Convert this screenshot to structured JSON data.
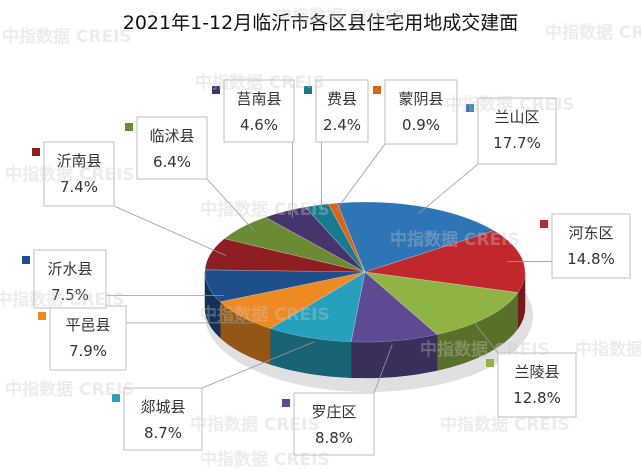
{
  "watermark": "中指数据 CREIS",
  "chart_data": {
    "type": "pie",
    "title": "2021年1-12月临沂市各区县住宅用地成交建面",
    "slices": [
      {
        "name": "兰山区",
        "value": 17.7,
        "label": "17.7%",
        "color": "#2E75B6"
      },
      {
        "name": "河东区",
        "value": 14.8,
        "label": "14.8%",
        "color": "#C0282E"
      },
      {
        "name": "兰陵县",
        "value": 12.8,
        "label": "12.8%",
        "color": "#8FB443"
      },
      {
        "name": "罗庄区",
        "value": 8.8,
        "label": "8.8%",
        "color": "#5E4A92"
      },
      {
        "name": "郯城县",
        "value": 8.7,
        "label": "8.7%",
        "color": "#26A0BC"
      },
      {
        "name": "平邑县",
        "value": 7.9,
        "label": "7.9%",
        "color": "#EE8A22"
      },
      {
        "name": "沂水县",
        "value": 7.5,
        "label": "7.5%",
        "color": "#1E4F8C"
      },
      {
        "name": "沂南县",
        "value": 7.4,
        "label": "7.4%",
        "color": "#8E1E22"
      },
      {
        "name": "临沭县",
        "value": 6.4,
        "label": "6.4%",
        "color": "#6A8A33"
      },
      {
        "name": "莒南县",
        "value": 4.6,
        "label": "4.6%",
        "color": "#46346E"
      },
      {
        "name": "费县",
        "value": 2.4,
        "label": "2.4%",
        "color": "#187A8E"
      },
      {
        "name": "蒙阴县",
        "value": 0.9,
        "label": "0.9%",
        "color": "#D8651A"
      }
    ]
  }
}
